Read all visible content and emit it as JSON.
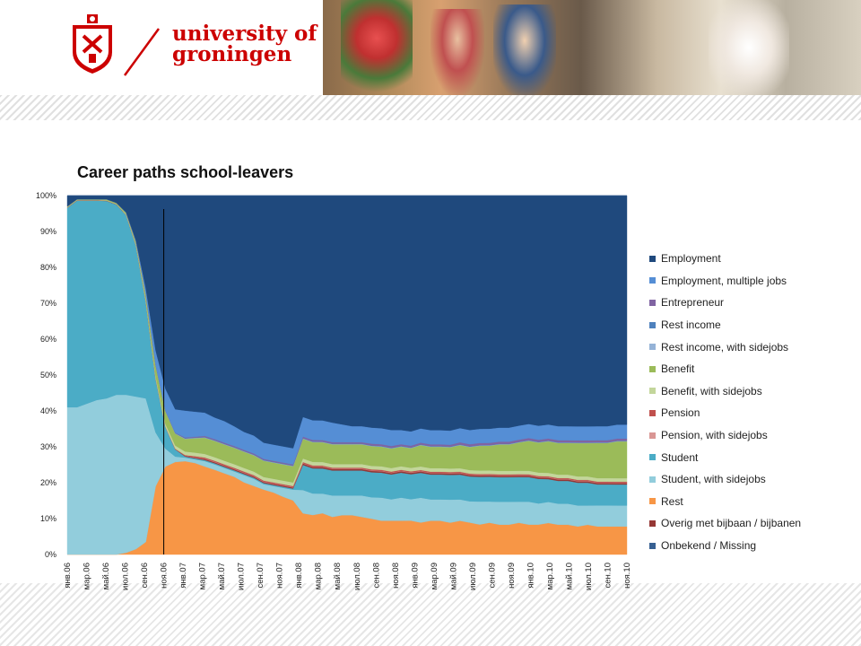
{
  "header": {
    "logo_line1": "university of",
    "logo_line2": "groningen",
    "brand_color": "#cc0000"
  },
  "chart_data": {
    "type": "area",
    "stacked": true,
    "percent": true,
    "title": "Career paths school-leavers",
    "xlabel": "",
    "ylabel": "",
    "ylim": [
      0,
      100
    ],
    "yticks": [
      "0%",
      "10%",
      "20%",
      "30%",
      "40%",
      "50%",
      "60%",
      "70%",
      "80%",
      "90%",
      "100%"
    ],
    "marker_label": "ноя.06",
    "x_ticks": [
      "янв.06",
      "мар.06",
      "май.06",
      "июл.06",
      "сен.06",
      "ноя.06",
      "янв.07",
      "мар.07",
      "май.07",
      "июл.07",
      "сен.07",
      "ноя.07",
      "янв.08",
      "мар.08",
      "май.08",
      "июл.08",
      "сен.08",
      "ноя.08",
      "янв.09",
      "мар.09",
      "май.09",
      "июл.09",
      "сен.09",
      "ноя.09",
      "янв.10",
      "мар.10",
      "май.10",
      "июл.10",
      "сен.10",
      "ноя.10"
    ],
    "legend_position": "right",
    "series": [
      {
        "name": "Rest",
        "color": "#f79646",
        "values": [
          0,
          0,
          0,
          0,
          0,
          0,
          0.5,
          1.5,
          3.5,
          19,
          24.5,
          25.8,
          26,
          25.5,
          24.5,
          23.5,
          22.5,
          21.5,
          20,
          19,
          18,
          17.2,
          16,
          15,
          11.5,
          11,
          11.5,
          10.5,
          11,
          11,
          10.5,
          10,
          9.5,
          9.5,
          9.5,
          9.5,
          9,
          9.5,
          9.5,
          9,
          9.5,
          9,
          8.5,
          9,
          8.5,
          8.5,
          9,
          8.5,
          8.5,
          9,
          8.5,
          8.5,
          8,
          8.5,
          8,
          8,
          8,
          8
        ]
      },
      {
        "name": "Student, with sidejobs",
        "color": "#92cddc",
        "values": [
          41,
          41,
          42,
          43,
          43.5,
          44.5,
          44,
          42.5,
          40,
          15,
          5,
          1.5,
          1,
          1,
          1.5,
          1.5,
          1.5,
          1.5,
          2,
          2,
          1.5,
          1.8,
          2.5,
          3,
          6.5,
          6,
          5.5,
          6,
          5.5,
          5.5,
          6,
          6,
          6.5,
          6,
          6.5,
          6,
          7,
          6,
          6,
          6.5,
          6,
          6,
          6.5,
          6,
          6.5,
          6.5,
          6,
          6.5,
          6,
          6,
          6,
          6,
          6,
          5.5,
          6,
          6,
          6,
          6
        ]
      },
      {
        "name": "Student",
        "color": "#4bacc6",
        "values": [
          55.5,
          57.5,
          56.5,
          55.5,
          55,
          53,
          50,
          42,
          27,
          15,
          6,
          2,
          0.3,
          0.3,
          0.3,
          0.3,
          0.3,
          0.3,
          0.3,
          0.3,
          0.3,
          0.3,
          0.3,
          0.3,
          7,
          7,
          7,
          7,
          7,
          7,
          7,
          7,
          7,
          7,
          7,
          7,
          7,
          7,
          7,
          7,
          7,
          7,
          7,
          7,
          7,
          7,
          7,
          7,
          7,
          6.5,
          6.5,
          6.5,
          6.5,
          6.5,
          6,
          6,
          6,
          6
        ]
      },
      {
        "name": "Overig met bijbaan / bijbanen",
        "color": "#953735",
        "values": [
          0.1,
          0.1,
          0.1,
          0.1,
          0.1,
          0.1,
          0.1,
          0.1,
          0.1,
          0.1,
          0.1,
          0.1,
          0.2,
          0.2,
          0.3,
          0.3,
          0.3,
          0.3,
          0.3,
          0.3,
          0.3,
          0.3,
          0.3,
          0.3,
          0.4,
          0.4,
          0.4,
          0.4,
          0.4,
          0.4,
          0.4,
          0.4,
          0.4,
          0.4,
          0.4,
          0.4,
          0.4,
          0.4,
          0.4,
          0.4,
          0.4,
          0.4,
          0.4,
          0.4,
          0.4,
          0.4,
          0.4,
          0.4,
          0.4,
          0.4,
          0.4,
          0.4,
          0.4,
          0.4,
          0.4,
          0.4,
          0.4,
          0.4
        ]
      },
      {
        "name": "Pension, with sidejobs",
        "color": "#d99694",
        "values": [
          0,
          0,
          0,
          0,
          0,
          0,
          0,
          0,
          0,
          0,
          0,
          0,
          0,
          0.1,
          0.1,
          0.1,
          0.1,
          0.1,
          0.1,
          0.1,
          0.1,
          0.1,
          0.1,
          0.1,
          0.1,
          0.1,
          0.1,
          0.1,
          0.1,
          0.1,
          0.1,
          0.1,
          0.1,
          0.1,
          0.1,
          0.1,
          0.1,
          0.1,
          0.1,
          0.1,
          0.1,
          0.1,
          0.1,
          0.1,
          0.1,
          0.1,
          0.1,
          0.1,
          0.1,
          0.1,
          0.1,
          0.1,
          0.1,
          0.1,
          0.1,
          0.1,
          0.1,
          0.1
        ]
      },
      {
        "name": "Pension",
        "color": "#c0504d",
        "values": [
          0,
          0,
          0,
          0,
          0,
          0,
          0,
          0,
          0,
          0,
          0,
          0.1,
          0.2,
          0.3,
          0.3,
          0.3,
          0.3,
          0.3,
          0.3,
          0.3,
          0.3,
          0.3,
          0.3,
          0.3,
          0.3,
          0.3,
          0.3,
          0.3,
          0.3,
          0.3,
          0.3,
          0.3,
          0.3,
          0.3,
          0.3,
          0.3,
          0.3,
          0.3,
          0.3,
          0.3,
          0.3,
          0.3,
          0.3,
          0.3,
          0.3,
          0.3,
          0.3,
          0.3,
          0.3,
          0.3,
          0.3,
          0.3,
          0.3,
          0.3,
          0.3,
          0.3,
          0.3,
          0.3
        ]
      },
      {
        "name": "Benefit, with sidejobs",
        "color": "#c3d69b",
        "values": [
          0.1,
          0.1,
          0.1,
          0.1,
          0.1,
          0.1,
          0.2,
          0.3,
          0.5,
          0.6,
          0.8,
          0.9,
          1,
          1,
          1,
          1,
          1,
          1,
          1,
          1,
          1,
          1,
          1,
          1,
          1,
          1,
          1,
          1,
          1,
          1,
          1,
          1,
          1,
          1,
          1,
          1,
          1,
          1,
          1,
          1,
          1,
          1,
          1,
          1,
          1,
          1,
          1,
          1,
          1,
          1,
          1,
          1,
          1,
          1,
          1,
          1,
          1,
          1
        ]
      },
      {
        "name": "Benefit",
        "color": "#9bbb59",
        "values": [
          0.2,
          0.2,
          0.2,
          0.2,
          0.3,
          0.3,
          0.4,
          0.8,
          1.5,
          3,
          3.5,
          3.3,
          3.5,
          4,
          4.5,
          4.5,
          4.5,
          4.5,
          4.5,
          4.5,
          4.5,
          4.5,
          4.5,
          4.5,
          5.5,
          5.5,
          5.5,
          5.5,
          5.5,
          5.5,
          5.5,
          5.5,
          5.5,
          5.5,
          5.5,
          5.5,
          6,
          6,
          6,
          6,
          6.5,
          6.5,
          7,
          7,
          7.5,
          7.5,
          8,
          8.5,
          8.5,
          9,
          9,
          9,
          9.5,
          9.5,
          10,
          10,
          10.5,
          10.5
        ]
      },
      {
        "name": "Rest income, with sidejobs",
        "color": "#95b3d7",
        "values": [
          0,
          0,
          0,
          0,
          0,
          0,
          0,
          0,
          0,
          0.1,
          0.1,
          0.1,
          0.1,
          0.1,
          0.1,
          0.1,
          0.1,
          0.1,
          0.1,
          0.1,
          0.1,
          0.1,
          0.1,
          0.1,
          0.1,
          0.1,
          0.1,
          0.1,
          0.1,
          0.1,
          0.1,
          0.1,
          0.1,
          0.1,
          0.1,
          0.1,
          0.1,
          0.1,
          0.1,
          0.1,
          0.1,
          0.1,
          0.1,
          0.1,
          0.1,
          0.1,
          0.1,
          0.1,
          0.1,
          0.1,
          0.1,
          0.1,
          0.1,
          0.1,
          0.1,
          0.1,
          0.1,
          0.1
        ]
      },
      {
        "name": "Rest income",
        "color": "#4f81bd",
        "values": [
          0,
          0,
          0,
          0,
          0,
          0,
          0,
          0,
          0.1,
          0.1,
          0.1,
          0.1,
          0.1,
          0.1,
          0.1,
          0.1,
          0.1,
          0.1,
          0.1,
          0.1,
          0.1,
          0.1,
          0.1,
          0.1,
          0.1,
          0.1,
          0.1,
          0.1,
          0.1,
          0.1,
          0.1,
          0.1,
          0.1,
          0.1,
          0.1,
          0.1,
          0.1,
          0.1,
          0.1,
          0.1,
          0.1,
          0.1,
          0.1,
          0.1,
          0.1,
          0.1,
          0.1,
          0.1,
          0.1,
          0.1,
          0.1,
          0.1,
          0.1,
          0.1,
          0.1,
          0.1,
          0.1,
          0.1
        ]
      },
      {
        "name": "Entrepreneur",
        "color": "#8064a2",
        "values": [
          0,
          0,
          0,
          0,
          0,
          0,
          0,
          0,
          0,
          0,
          0.1,
          0.1,
          0.2,
          0.2,
          0.3,
          0.3,
          0.3,
          0.3,
          0.3,
          0.3,
          0.3,
          0.3,
          0.3,
          0.3,
          0.4,
          0.4,
          0.4,
          0.4,
          0.4,
          0.4,
          0.4,
          0.5,
          0.5,
          0.5,
          0.5,
          0.5,
          0.5,
          0.5,
          0.5,
          0.5,
          0.6,
          0.6,
          0.6,
          0.6,
          0.6,
          0.6,
          0.6,
          0.6,
          0.6,
          0.6,
          0.6,
          0.6,
          0.6,
          0.6,
          0.6,
          0.6,
          0.6,
          0.6
        ]
      },
      {
        "name": "Employment, multiple jobs",
        "color": "#558ed5",
        "values": [
          0,
          0,
          0,
          0,
          0,
          0,
          0.1,
          0.3,
          1.5,
          4,
          6,
          6.5,
          7.5,
          7,
          6.5,
          6,
          6,
          5.5,
          5,
          5,
          4.5,
          4.5,
          4.5,
          4.5,
          5.5,
          5.5,
          5.5,
          5.5,
          5,
          4.5,
          4.5,
          4.5,
          4.5,
          4.5,
          4,
          4,
          4,
          4,
          4,
          4,
          4,
          4,
          4,
          4,
          4,
          4,
          4,
          4,
          4,
          4,
          4,
          4,
          4,
          4,
          4,
          4,
          4,
          4
        ]
      },
      {
        "name": "Employment",
        "color": "#1f497d",
        "values": [
          3,
          1,
          1,
          1,
          1,
          2,
          4.7,
          12.5,
          25.8,
          43.1,
          53.8,
          59.6,
          59.9,
          60.2,
          60.4,
          61.5,
          62.5,
          63.8,
          65.5,
          66.5,
          68.5,
          69.1,
          69.6,
          70.1,
          61.8,
          62.6,
          62.7,
          63.5,
          64,
          64.5,
          64.5,
          64.9,
          65.4,
          65.9,
          65.9,
          66.1,
          65.6,
          66,
          66,
          66.4,
          65.5,
          66.1,
          66.1,
          66,
          66,
          66,
          65.3,
          64.9,
          65.4,
          65.3,
          65.8,
          65.8,
          65.9,
          65.9,
          65.8,
          65.8,
          65.4,
          65.4
        ]
      },
      {
        "name": "Onbekend / Missing",
        "color": "#376092",
        "values": [
          0,
          0,
          0,
          0,
          0,
          0,
          0,
          0,
          0,
          0,
          0,
          0,
          0,
          0,
          0,
          0,
          0,
          0,
          0,
          0,
          0,
          0,
          0,
          0,
          0,
          0,
          0,
          0,
          0,
          0,
          0,
          0,
          0,
          0,
          0,
          0,
          0,
          0,
          0,
          0,
          0,
          0,
          0,
          0,
          0,
          0,
          0,
          0,
          0,
          0,
          0,
          0,
          0,
          0,
          0,
          0,
          0,
          0
        ]
      }
    ],
    "legend_order": [
      "Employment",
      "Employment, multiple jobs",
      "Entrepreneur",
      "Rest income",
      "Rest income, with sidejobs",
      "Benefit",
      "Benefit, with sidejobs",
      "Pension",
      "Pension, with sidejobs",
      "Student",
      "Student, with sidejobs",
      "Rest",
      "Overig met bijbaan / bijbanen",
      "Onbekend / Missing"
    ]
  }
}
